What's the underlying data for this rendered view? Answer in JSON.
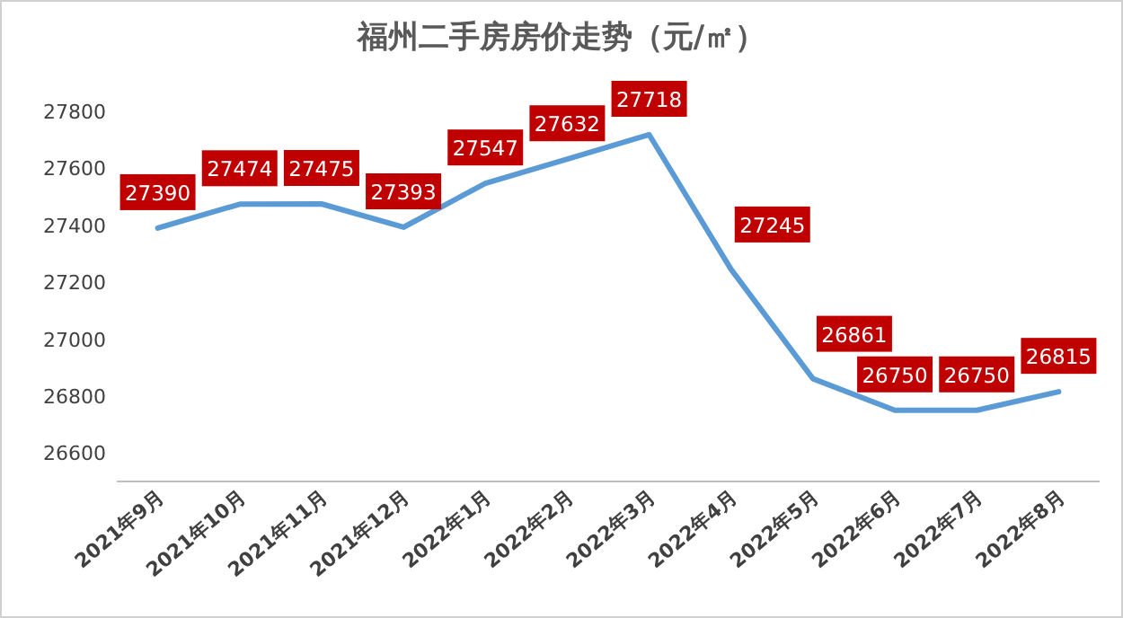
{
  "chart_data": {
    "type": "line",
    "title": "福州二手房房价走势（元/㎡）",
    "categories": [
      "2021年9月",
      "2021年10月",
      "2021年11月",
      "2021年12月",
      "2022年1月",
      "2022年2月",
      "2022年3月",
      "2022年4月",
      "2022年5月",
      "2022年6月",
      "2022年7月",
      "2022年8月"
    ],
    "values": [
      27390,
      27474,
      27475,
      27393,
      27547,
      27632,
      27718,
      27245,
      26861,
      26750,
      26750,
      26815
    ],
    "color": "#5b9bd5",
    "ylim": [
      26500,
      27800
    ],
    "yticks": [
      26600,
      26800,
      27000,
      27200,
      27400,
      27600,
      27800
    ],
    "data_labels": true,
    "grid": false,
    "legend": false,
    "marker": "none"
  }
}
